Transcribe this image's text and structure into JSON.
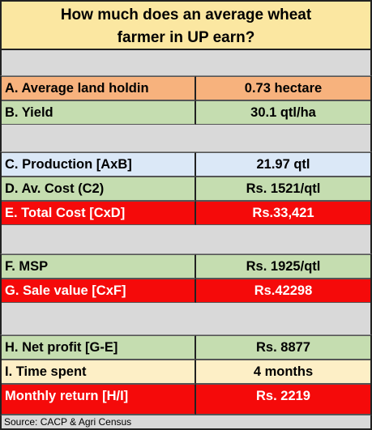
{
  "title": {
    "line1": "How much does an average wheat",
    "line2": "farmer in UP earn?"
  },
  "rows": [
    {
      "label": "A. Average land holdin",
      "value": "0.73 hectare",
      "color": "#f7b27d"
    },
    {
      "label": "B. Yield",
      "value": "30.1 qtl/ha",
      "color": "#c5ddb0"
    },
    {
      "label": "C. Production [AxB]",
      "value": "21.97 qtl",
      "color": "#dbe8f7"
    },
    {
      "label": "D. Av. Cost (C2)",
      "value": "Rs. 1521/qtl",
      "color": "#c5ddb0"
    },
    {
      "label": "E. Total Cost [CxD]",
      "value": "Rs.33,421",
      "color": "#f50a0a"
    },
    {
      "label": "F. MSP",
      "value": "Rs. 1925/qtl",
      "color": "#c5ddb0"
    },
    {
      "label": "G. Sale value [CxF]",
      "value": "Rs.42298",
      "color": "#f50a0a"
    },
    {
      "label": "H. Net profit [G-E]",
      "value": "Rs. 8877",
      "color": "#c5ddb0"
    },
    {
      "label": "I. Time spent",
      "value": "4 months",
      "color": "#fdefc6"
    },
    {
      "label": "Monthly return [H/I]",
      "value": "Rs. 2219",
      "color": "#f50a0a"
    }
  ],
  "source": "Source: CACP & Agri Census"
}
